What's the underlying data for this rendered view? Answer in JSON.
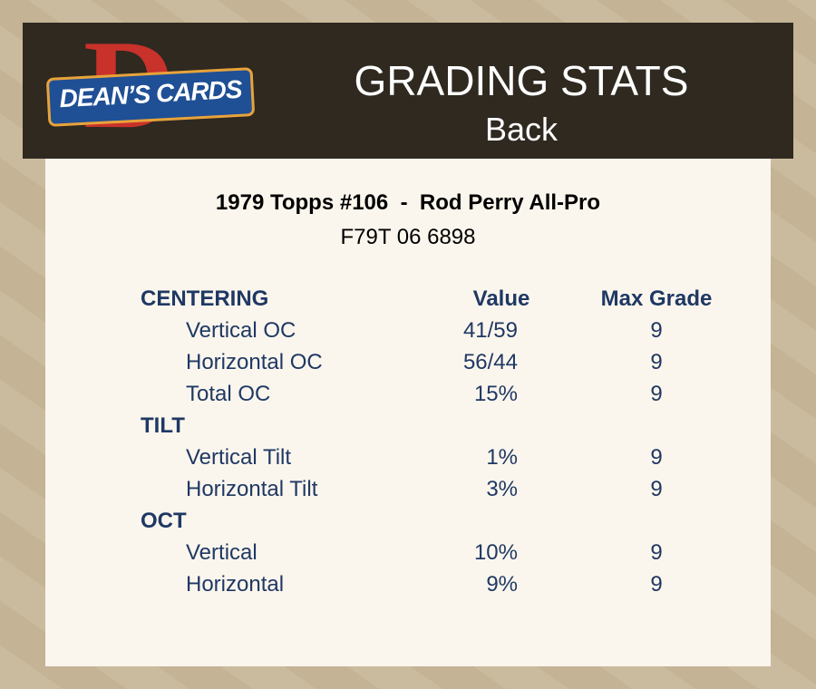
{
  "header": {
    "logo": {
      "letter": "D",
      "text": "DEAN’S CARDS"
    },
    "title": "GRADING STATS",
    "subtitle": "Back"
  },
  "card": {
    "title": "1979 Topps #106  -  Rod Perry All-Pro",
    "cert": "F79T 06 6898"
  },
  "table": {
    "headers": [
      "Value",
      "Max Grade"
    ],
    "sections": [
      {
        "name": "CENTERING",
        "rows": [
          [
            "Vertical OC",
            "41/59",
            9
          ],
          [
            "Horizontal OC",
            "56/44",
            9
          ],
          [
            "Total OC",
            "15%",
            9
          ]
        ]
      },
      {
        "name": "TILT",
        "rows": [
          [
            "Vertical Tilt",
            "1%",
            9
          ],
          [
            "Horizontal Tilt",
            "3%",
            9
          ]
        ]
      },
      {
        "name": "OCT",
        "rows": [
          [
            "Vertical",
            "10%",
            9
          ],
          [
            "Horizontal",
            "9%",
            9
          ]
        ]
      }
    ]
  }
}
